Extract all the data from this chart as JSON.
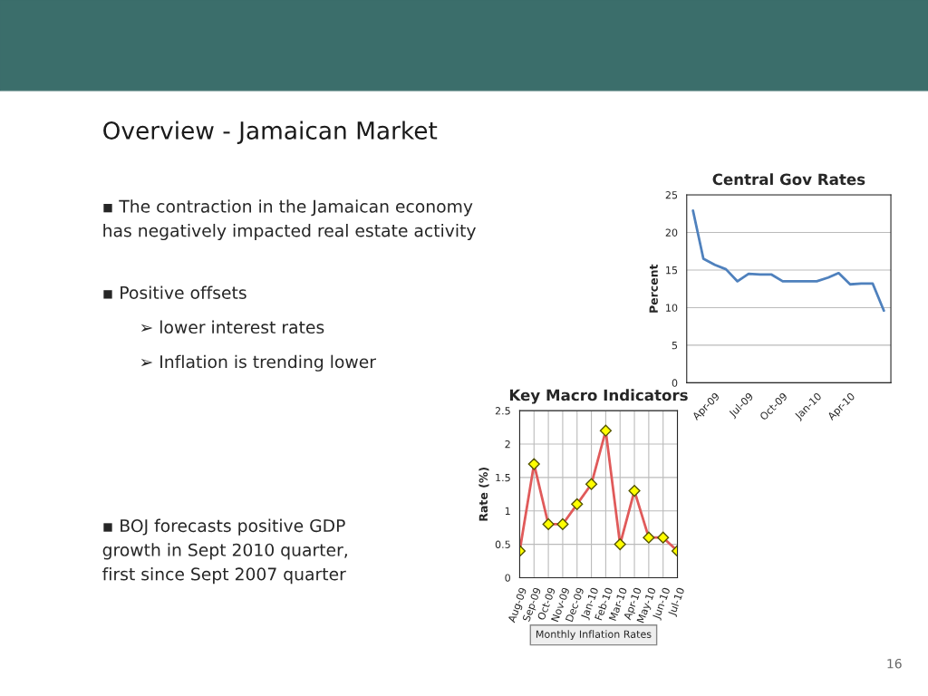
{
  "chart_data": [
    {
      "type": "other",
      "title": "Overview - Jamaican Market",
      "annotations": [
        "▪ The contraction in the Jamaican economy\nhas negatively impacted real estate activity",
        "▪ Positive offsets",
        "➢ lower interest rates",
        "➢ Inflation is trending lower",
        "▪ BOJ forecasts positive GDP\ngrowth in Sept 2010 quarter,\nfirst since Sept 2007 quarter",
        "16"
      ]
    },
    {
      "type": "line",
      "title": "Central Gov Rates",
      "ylabel": "Percent",
      "x": [
        "2009-02",
        "2009-03",
        "2009-04",
        "2009-05",
        "2009-06",
        "2009-07",
        "2009-08",
        "2009-09",
        "2009-10",
        "2009-11",
        "2009-12",
        "2010-01",
        "2010-02",
        "2010-03",
        "2010-04",
        "2010-05",
        "2010-06",
        "2010-07"
      ],
      "series": [
        {
          "color": "#4f81bd",
          "values": [
            22.9,
            16.5,
            15.7,
            15.1,
            13.5,
            14.5,
            14.4,
            14.4,
            13.5,
            13.5,
            13.5,
            13.5,
            14.0,
            14.6,
            13.1,
            13.2,
            13.2,
            9.6
          ]
        }
      ],
      "xlim": [
        "2009-01-15",
        "2010-07-20"
      ],
      "xticks": [
        {
          "value": "2009-04",
          "label": "Apr-09"
        },
        {
          "value": "2009-07",
          "label": "Jul-09"
        },
        {
          "value": "2009-10",
          "label": "Oct-09"
        },
        {
          "value": "2010-01",
          "label": "Jan-10"
        },
        {
          "value": "2010-04",
          "label": "Apr-10"
        }
      ],
      "ylim": [
        0,
        25
      ],
      "yticks": [
        0,
        5,
        10,
        15,
        20,
        25
      ],
      "grid": "y",
      "marker": "none",
      "line_style": "solid"
    },
    {
      "type": "line",
      "title": "Key Macro Indicators",
      "ylabel": "Rate (%)",
      "categories": [
        "Aug-09",
        "Sep-09",
        "Oct-09",
        "Nov-09",
        "Dec-09",
        "Jan-10",
        "Feb-10",
        "Mar-10",
        "Apr-10",
        "May-10",
        "Jun-10",
        "Jul-10"
      ],
      "series": [
        {
          "color": "#e05a5a",
          "values": [
            0.4,
            1.7,
            0.8,
            0.8,
            1.1,
            1.4,
            2.2,
            0.5,
            1.3,
            0.6,
            0.6,
            0.4
          ]
        }
      ],
      "ylim": [
        0,
        2.5
      ],
      "yticks": [
        0,
        0.5,
        1,
        1.5,
        2,
        2.5
      ],
      "grid": true,
      "marker": "diamond",
      "line_style": "solid",
      "annotations": [
        "Monthly Inflation Rates"
      ]
    }
  ]
}
